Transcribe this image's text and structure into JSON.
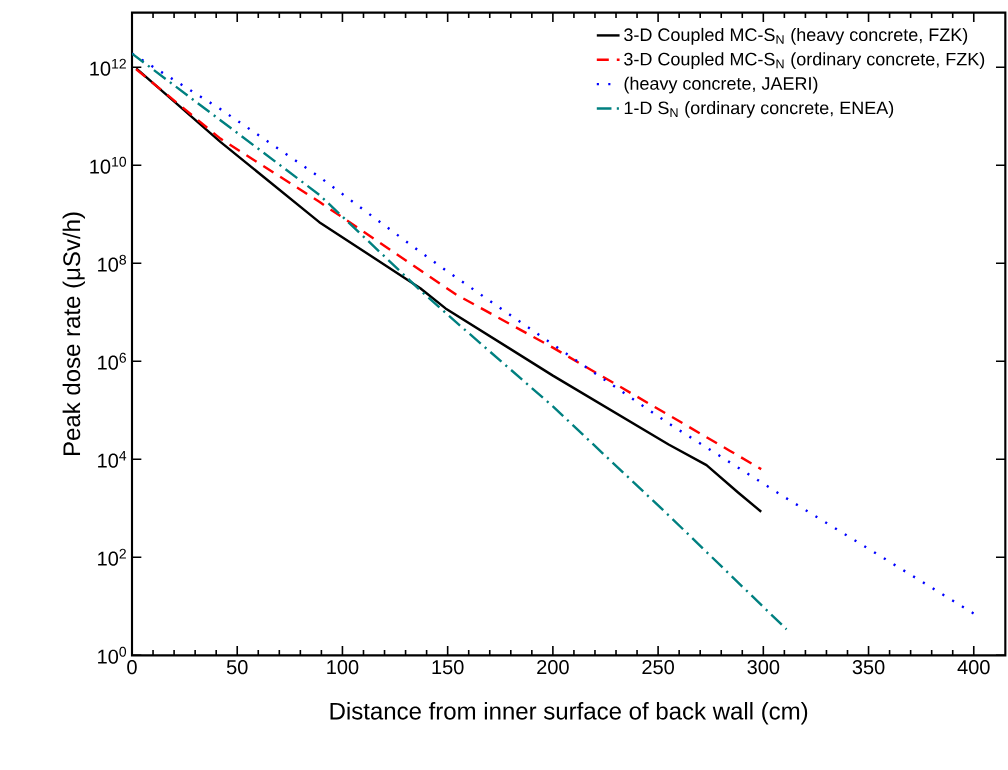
{
  "chart_data": {
    "type": "line",
    "xlabel": "Distance from inner surface of back wall (cm)",
    "ylabel": "Peak dose rate (μSv/h)",
    "log": "y",
    "xlim": [
      0,
      415
    ],
    "ylim": [
      1,
      13000000000000.0
    ],
    "xticks": [
      0,
      50,
      100,
      150,
      200,
      250,
      300,
      350,
      400
    ],
    "yticks": [
      {
        "value": 1,
        "label": "10$^{0}$"
      },
      {
        "value": 100,
        "label": "10$^{2}$"
      },
      {
        "value": 10000,
        "label": "10$^{4}$"
      },
      {
        "value": 1000000,
        "label": "10$^{6}$"
      },
      {
        "value": 100000000,
        "label": "10$^{8}$"
      },
      {
        "value": 10000000000,
        "label": "10$^{10}$"
      },
      {
        "value": 1000000000000,
        "label": "10$^{12}$"
      }
    ],
    "grid": false,
    "legend": "top right",
    "series": [
      {
        "name": "3-D Coupled MC-S$_{N}$ (heavy concrete, FZK)",
        "color": "#000000",
        "line_style": "solid",
        "x": [
          2,
          42,
          89,
          137,
          149,
          200,
          255,
          273,
          288,
          299
        ],
        "values": [
          950000000000.0,
          30000000000.0,
          690000000.0,
          31000000.0,
          12000000.0,
          510000.0,
          20000.0,
          7600.0,
          2100.0,
          850.0
        ]
      },
      {
        "name": "3-D Coupled MC-S$_{N}$ (ordinary concrete, FZK)",
        "color": "#ff0000",
        "line_style": "dashed",
        "x": [
          2,
          42,
          89,
          137,
          154,
          200,
          255,
          284,
          299
        ],
        "values": [
          910000000000.0,
          35000000000.0,
          1800000000.0,
          72000000.0,
          23000000.0,
          1900000.0,
          80000.0,
          15000.0,
          6300.0
        ]
      },
      {
        "name": "(heavy concrete, JAERI)",
        "color": "#0000ff",
        "line_style": "dotted",
        "x": [
          0,
          42,
          89,
          137,
          151,
          200,
          255,
          310,
          402
        ],
        "values": [
          1900000000000.0,
          140000000000.0,
          5800000000.0,
          170000000.0,
          63000000.0,
          2200000.0,
          54000.0,
          1700.0,
          6.3
        ]
      },
      {
        "name": "1-D S$_{N}$ (ordinary concrete, ENEA)",
        "color": "#008080",
        "line_style": "dashdot",
        "x": [
          0,
          42,
          89,
          137,
          154,
          200,
          255,
          311
        ],
        "values": [
          1900000000000.0,
          83000000000.0,
          2500000000.0,
          28000000.0,
          6300000.0,
          120000.0,
          720.0,
          3.4
        ]
      }
    ]
  }
}
